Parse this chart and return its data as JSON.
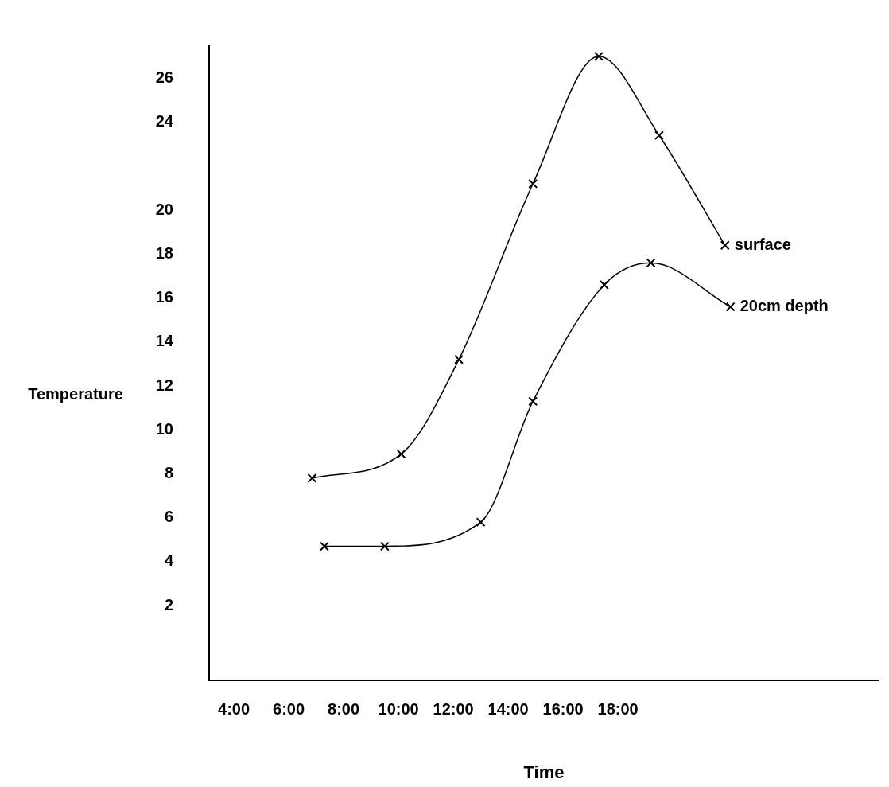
{
  "chart_data": {
    "type": "line",
    "xlabel": "Time",
    "ylabel": "Temperature",
    "xlim": [
      3.1,
      27.5
    ],
    "xticks": [
      {
        "value": 4,
        "label": "4:00"
      },
      {
        "value": 6,
        "label": "6:00"
      },
      {
        "value": 8,
        "label": "8:00"
      },
      {
        "value": 10,
        "label": "10:00"
      },
      {
        "value": 12,
        "label": "12:00"
      },
      {
        "value": 14,
        "label": "14:00"
      },
      {
        "value": 16,
        "label": "16:00"
      },
      {
        "value": 18,
        "label": "18:00"
      }
    ],
    "ylim": [
      -1.4,
      27.5
    ],
    "yticks": [
      2,
      4,
      6,
      8,
      10,
      12,
      14,
      16,
      18,
      20,
      24,
      26
    ],
    "grid": false,
    "legend": false,
    "series": [
      {
        "name": "surface",
        "color": "#000000",
        "marker": "cross",
        "x": [
          6.85,
          10.1,
          12.2,
          14.9,
          17.3,
          19.5,
          21.9
        ],
        "values": [
          7.8,
          8.9,
          13.2,
          21.2,
          27.0,
          23.4,
          18.4
        ]
      },
      {
        "name": "20cm depth",
        "color": "#000000",
        "marker": "cross",
        "x": [
          7.3,
          9.5,
          13.0,
          14.9,
          17.5,
          19.2,
          22.1
        ],
        "values": [
          4.7,
          4.7,
          5.8,
          11.3,
          16.6,
          17.6,
          15.6
        ]
      }
    ]
  }
}
